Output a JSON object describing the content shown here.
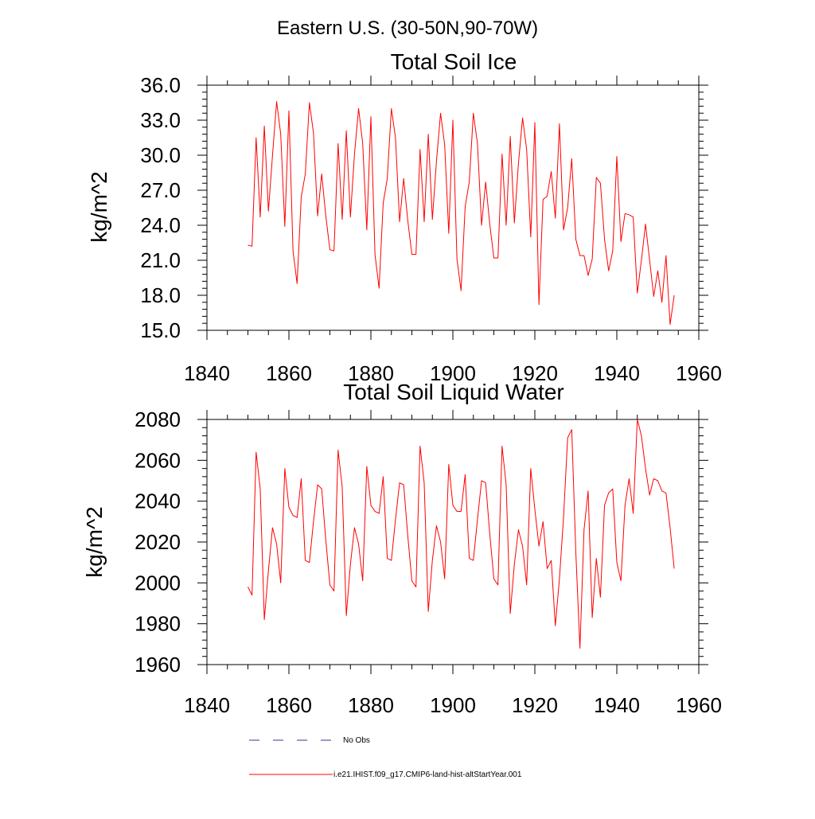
{
  "main_title": "Eastern U.S. (30-50N,90-70W)",
  "legend": [
    {
      "label": "No Obs",
      "style": "dashed",
      "color": "#2b3a8f"
    },
    {
      "label": "i.e21.IHIST.f09_g17.CMIP6-land-hist-altStartYear.001",
      "style": "solid",
      "color": "#ff0000"
    }
  ],
  "chart_data": [
    {
      "type": "line",
      "title": "Total Soil Ice",
      "ylabel": "kg/m^2",
      "xlabel": "",
      "xlim": [
        1840,
        1960
      ],
      "ylim": [
        15,
        36
      ],
      "xticks": [
        1840,
        1860,
        1880,
        1900,
        1920,
        1940,
        1960
      ],
      "xtick_labels": [
        "1840",
        "1860",
        "1880",
        "1900",
        "1920",
        "1940",
        "1960"
      ],
      "yticks": [
        15,
        18,
        21,
        24,
        27,
        30,
        33,
        36
      ],
      "ytick_labels": [
        "15.0",
        "18.0",
        "21.0",
        "24.0",
        "27.0",
        "30.0",
        "33.0",
        "36.0"
      ],
      "series": [
        {
          "color": "#ff0000",
          "x": [
            1850,
            1851,
            1852,
            1853,
            1854,
            1855,
            1856,
            1857,
            1858,
            1859,
            1860,
            1861,
            1862,
            1863,
            1864,
            1865,
            1866,
            1867,
            1868,
            1869,
            1870,
            1871,
            1872,
            1873,
            1874,
            1875,
            1876,
            1877,
            1878,
            1879,
            1880,
            1881,
            1882,
            1883,
            1884,
            1885,
            1886,
            1887,
            1888,
            1889,
            1890,
            1891,
            1892,
            1893,
            1894,
            1895,
            1896,
            1897,
            1898,
            1899,
            1900,
            1901,
            1902,
            1903,
            1904,
            1905,
            1906,
            1907,
            1908,
            1909,
            1910,
            1911,
            1912,
            1913,
            1914,
            1915,
            1916,
            1917,
            1918,
            1919,
            1920,
            1921,
            1922,
            1923,
            1924,
            1925,
            1926,
            1927,
            1928,
            1929,
            1930,
            1931,
            1932,
            1933,
            1934,
            1935,
            1936,
            1937,
            1938,
            1939,
            1940,
            1941,
            1942,
            1943,
            1944,
            1945,
            1946,
            1947,
            1948,
            1949,
            1950,
            1951,
            1952,
            1953,
            1954
          ],
          "y": [
            22.3,
            22.2,
            31.5,
            24.7,
            32.5,
            25.2,
            30.0,
            34.6,
            31.8,
            23.9,
            33.8,
            21.8,
            19.0,
            26.4,
            28.4,
            34.5,
            31.9,
            24.8,
            28.4,
            24.8,
            21.9,
            21.8,
            31.0,
            24.5,
            32.1,
            24.7,
            30.1,
            34.0,
            31.0,
            23.6,
            33.3,
            21.5,
            18.6,
            25.9,
            28.0,
            34.0,
            31.5,
            24.3,
            28.0,
            24.4,
            21.5,
            21.5,
            30.5,
            24.3,
            31.8,
            24.5,
            29.5,
            33.6,
            30.9,
            23.3,
            33.0,
            21.1,
            18.4,
            25.6,
            27.7,
            33.6,
            31.0,
            24.0,
            27.7,
            24.1,
            21.2,
            21.2,
            30.1,
            24.0,
            31.6,
            24.2,
            29.3,
            33.2,
            30.5,
            23.0,
            32.8,
            17.2,
            26.2,
            26.5,
            28.6,
            24.6,
            32.7,
            23.6,
            25.5,
            29.7,
            22.8,
            21.4,
            21.4,
            19.7,
            21.1,
            28.1,
            27.6,
            22.8,
            20.1,
            21.8,
            29.9,
            22.6,
            25.0,
            24.9,
            24.7,
            18.2,
            21.0,
            24.1,
            21.0,
            17.9,
            20.1,
            17.4,
            21.4,
            15.5,
            18.0
          ]
        }
      ]
    },
    {
      "type": "line",
      "title": "Total Soil Liquid Water",
      "ylabel": "kg/m^2",
      "xlabel": "",
      "xlim": [
        1840,
        1960
      ],
      "ylim": [
        1960,
        2080
      ],
      "xticks": [
        1840,
        1860,
        1880,
        1900,
        1920,
        1940,
        1960
      ],
      "xtick_labels": [
        "1840",
        "1860",
        "1880",
        "1900",
        "1920",
        "1940",
        "1960"
      ],
      "yticks": [
        1960,
        1980,
        2000,
        2020,
        2040,
        2060,
        2080
      ],
      "ytick_labels": [
        "1960",
        "1980",
        "2000",
        "2020",
        "2040",
        "2060",
        "2080"
      ],
      "series": [
        {
          "color": "#ff0000",
          "x": [
            1850,
            1851,
            1852,
            1853,
            1854,
            1855,
            1856,
            1857,
            1858,
            1859,
            1860,
            1861,
            1862,
            1863,
            1864,
            1865,
            1866,
            1867,
            1868,
            1869,
            1870,
            1871,
            1872,
            1873,
            1874,
            1875,
            1876,
            1877,
            1878,
            1879,
            1880,
            1881,
            1882,
            1883,
            1884,
            1885,
            1886,
            1887,
            1888,
            1889,
            1890,
            1891,
            1892,
            1893,
            1894,
            1895,
            1896,
            1897,
            1898,
            1899,
            1900,
            1901,
            1902,
            1903,
            1904,
            1905,
            1906,
            1907,
            1908,
            1909,
            1910,
            1911,
            1912,
            1913,
            1914,
            1915,
            1916,
            1917,
            1918,
            1919,
            1920,
            1921,
            1922,
            1923,
            1924,
            1925,
            1926,
            1927,
            1928,
            1929,
            1930,
            1931,
            1932,
            1933,
            1934,
            1935,
            1936,
            1937,
            1938,
            1939,
            1940,
            1941,
            1942,
            1943,
            1944,
            1945,
            1946,
            1947,
            1948,
            1949,
            1950,
            1951,
            1952,
            1953,
            1954
          ],
          "y": [
            1998,
            1994,
            2064,
            2046,
            1982,
            2006,
            2027,
            2019,
            2000,
            2056,
            2037,
            2033,
            2032,
            2051,
            2011,
            2010,
            2030,
            2048,
            2046,
            2021,
            1999,
            1996,
            2065,
            2047,
            1984,
            2009,
            2027,
            2019,
            2001,
            2057,
            2038,
            2035,
            2034,
            2052,
            2012,
            2011,
            2031,
            2049,
            2048,
            2023,
            2001,
            1998,
            2067,
            2049,
            1986,
            2011,
            2028,
            2020,
            2002,
            2058,
            2038,
            2035,
            2035,
            2053,
            2012,
            2011,
            2031,
            2050,
            2049,
            2024,
            2002,
            1999,
            2067,
            2048,
            1985,
            2009,
            2026,
            2018,
            1999,
            2056,
            2036,
            2018,
            2030,
            2007,
            2011,
            1979,
            2002,
            2032,
            2071,
            2075,
            2015,
            1968,
            2026,
            2045,
            1983,
            2012,
            1993,
            2038,
            2044,
            2046,
            2010,
            2001,
            2038,
            2051,
            2034,
            2080,
            2072,
            2056,
            2043,
            2051,
            2050,
            2045,
            2044,
            2027,
            2007
          ]
        }
      ]
    }
  ]
}
